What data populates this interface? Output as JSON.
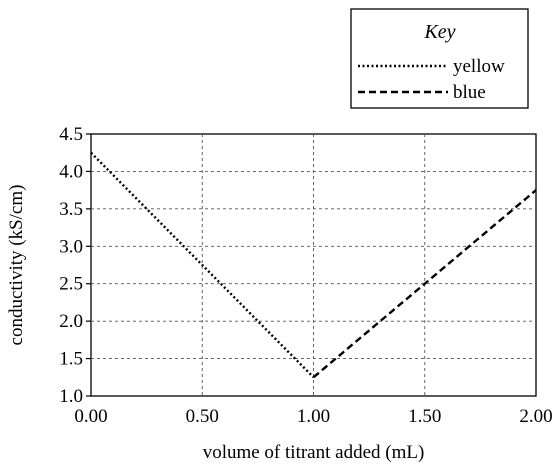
{
  "chart_data": {
    "type": "line",
    "title": "",
    "xlabel": "volume of titrant added (mL)",
    "ylabel": "conductivity (kS/cm)",
    "xlim": [
      0,
      2
    ],
    "ylim": [
      1.0,
      4.5
    ],
    "x_ticks": [
      "0.00",
      "0.50",
      "1.00",
      "1.50",
      "2.00"
    ],
    "y_ticks": [
      "1.0",
      "1.5",
      "2.0",
      "2.5",
      "3.0",
      "3.5",
      "4.0",
      "4.5"
    ],
    "grid": "dashed",
    "legend": {
      "title": "Key",
      "placement": "top-right, outside plot"
    },
    "series": [
      {
        "name": "yellow",
        "style": "dotted",
        "x": [
          0.0,
          1.0
        ],
        "y": [
          4.25,
          1.25
        ]
      },
      {
        "name": "blue",
        "style": "dashed",
        "x": [
          1.0,
          2.0
        ],
        "y": [
          1.25,
          3.75
        ]
      }
    ]
  }
}
